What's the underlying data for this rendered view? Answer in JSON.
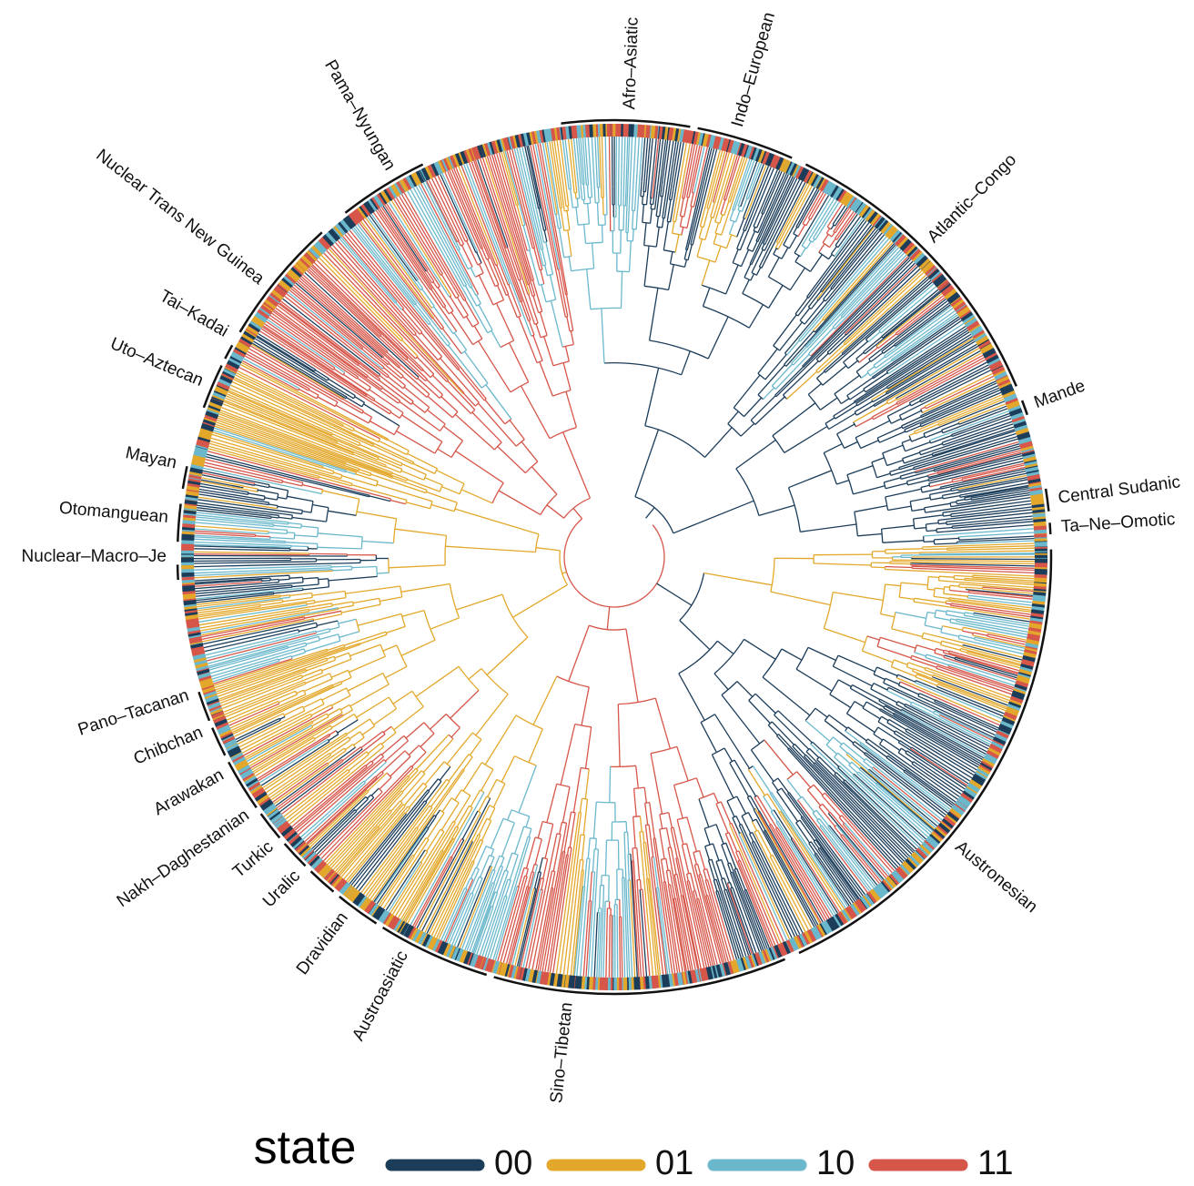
{
  "families": [
    {
      "label": "Afro–Asiatic"
    },
    {
      "label": "Indo–European"
    },
    {
      "label": "Atlantic–Congo"
    },
    {
      "label": "Mande"
    },
    {
      "label": "Central Sudanic"
    },
    {
      "label": "Ta–Ne–Omotic"
    },
    {
      "label": "Austronesian"
    },
    {
      "label": "Sino–Tibetan"
    },
    {
      "label": "Austroasiatic"
    },
    {
      "label": "Dravidian"
    },
    {
      "label": "Uralic"
    },
    {
      "label": "Turkic"
    },
    {
      "label": "Nakh–Daghestanian"
    },
    {
      "label": "Arawakan"
    },
    {
      "label": "Chibchan"
    },
    {
      "label": "Pano–Tacanan"
    },
    {
      "label": "Nuclear–Macro–Je"
    },
    {
      "label": "Otomanguean"
    },
    {
      "label": "Mayan"
    },
    {
      "label": "Uto–Aztecan"
    },
    {
      "label": "Tai–Kadai"
    },
    {
      "label": "Nuclear Trans New Guinea"
    },
    {
      "label": "Pama–Nyungan"
    }
  ],
  "legend": {
    "title": "state",
    "items": [
      {
        "label": "00",
        "color": "#1c3d5a"
      },
      {
        "label": "01",
        "color": "#e3a82b"
      },
      {
        "label": "10",
        "color": "#6bb8cc"
      },
      {
        "label": "11",
        "color": "#d6564a"
      }
    ]
  }
}
